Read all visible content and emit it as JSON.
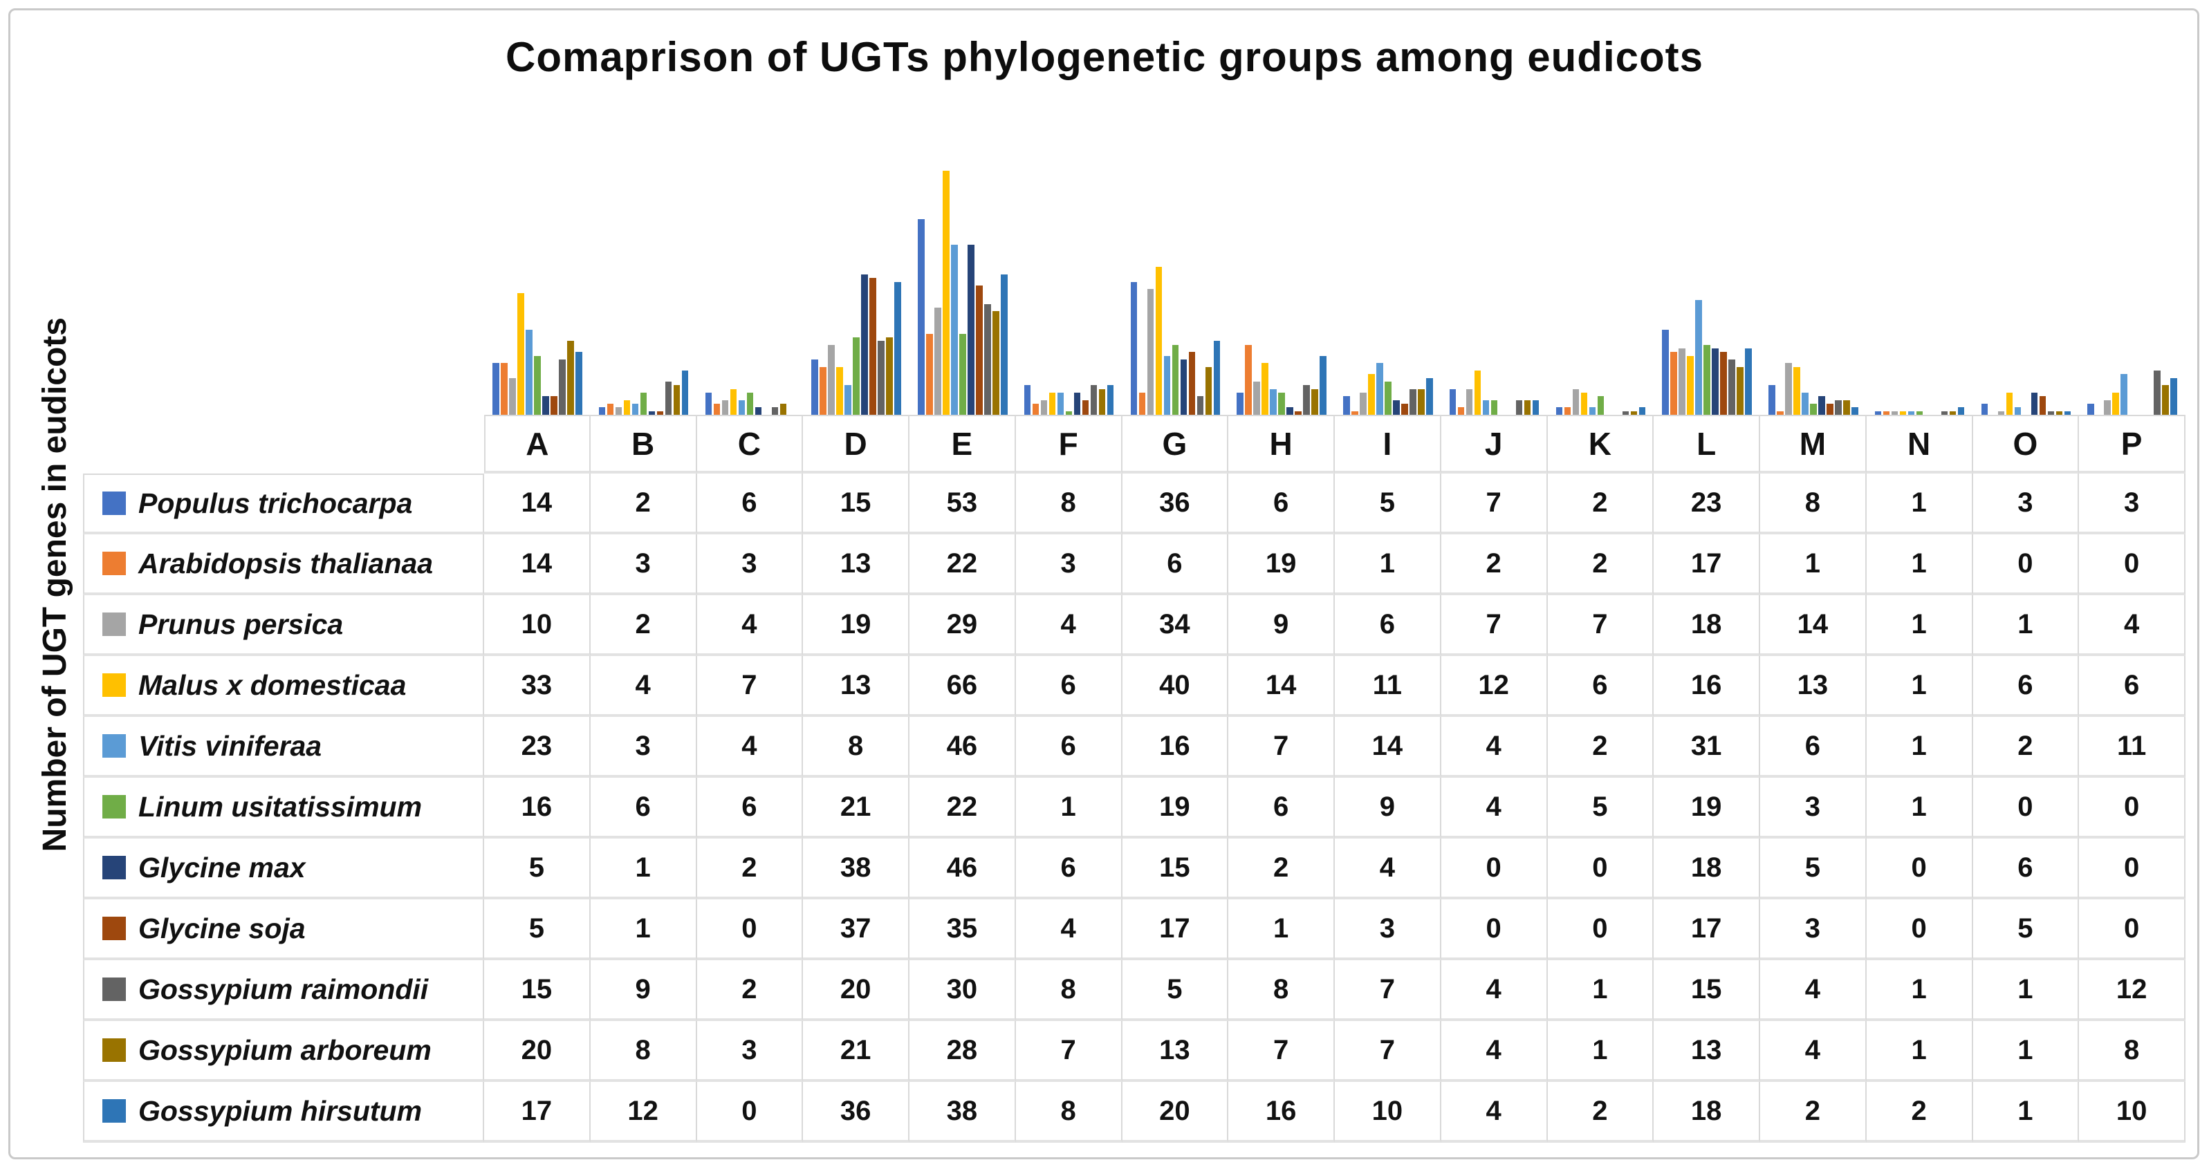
{
  "title": "Comaprison of UGTs phylogenetic groups among eudicots",
  "y_axis_label": "Number of UGT genes in eudicots",
  "chart_data": {
    "type": "bar",
    "title": "Comaprison of UGTs phylogenetic groups among eudicots",
    "xlabel": "",
    "ylabel": "Number of UGT genes in eudicots",
    "ylim": [
      0,
      70
    ],
    "grid": false,
    "legend_position": "table-rows-left",
    "categories": [
      "A",
      "B",
      "C",
      "D",
      "E",
      "F",
      "G",
      "H",
      "I",
      "J",
      "K",
      "L",
      "M",
      "N",
      "O",
      "P"
    ],
    "series": [
      {
        "name": "Populus trichocarpa",
        "color": "#4472C4",
        "values": [
          14,
          2,
          6,
          15,
          53,
          8,
          36,
          6,
          5,
          7,
          2,
          23,
          8,
          1,
          3,
          3
        ]
      },
      {
        "name": "Arabidopsis thalianaa",
        "color": "#ED7D31",
        "values": [
          14,
          3,
          3,
          13,
          22,
          3,
          6,
          19,
          1,
          2,
          2,
          17,
          1,
          1,
          0,
          0
        ]
      },
      {
        "name": "Prunus persica",
        "color": "#A5A5A5",
        "values": [
          10,
          2,
          4,
          19,
          29,
          4,
          34,
          9,
          6,
          7,
          7,
          18,
          14,
          1,
          1,
          4
        ]
      },
      {
        "name": "Malus x domesticaa",
        "color": "#FFC000",
        "values": [
          33,
          4,
          7,
          13,
          66,
          6,
          40,
          14,
          11,
          12,
          6,
          16,
          13,
          1,
          6,
          6
        ]
      },
      {
        "name": "Vitis viniferaa",
        "color": "#5B9BD5",
        "values": [
          23,
          3,
          4,
          8,
          46,
          6,
          16,
          7,
          14,
          4,
          2,
          31,
          6,
          1,
          2,
          11
        ]
      },
      {
        "name": "Linum usitatissimum",
        "color": "#70AD47",
        "values": [
          16,
          6,
          6,
          21,
          22,
          1,
          19,
          6,
          9,
          4,
          5,
          19,
          3,
          1,
          0,
          0
        ]
      },
      {
        "name": "Glycine max",
        "color": "#264478",
        "values": [
          5,
          1,
          2,
          38,
          46,
          6,
          15,
          2,
          4,
          0,
          0,
          18,
          5,
          0,
          6,
          0
        ]
      },
      {
        "name": "Glycine soja",
        "color": "#9E480E",
        "values": [
          5,
          1,
          0,
          37,
          35,
          4,
          17,
          1,
          3,
          0,
          0,
          17,
          3,
          0,
          5,
          0
        ]
      },
      {
        "name": "Gossypium raimondii",
        "color": "#636363",
        "values": [
          15,
          9,
          2,
          20,
          30,
          8,
          5,
          8,
          7,
          4,
          1,
          15,
          4,
          1,
          1,
          12
        ]
      },
      {
        "name": "Gossypium arboreum",
        "color": "#997300",
        "values": [
          20,
          8,
          3,
          21,
          28,
          7,
          13,
          7,
          7,
          4,
          1,
          13,
          4,
          1,
          1,
          8
        ]
      },
      {
        "name": "Gossypium hirsutum",
        "color": "#2E75B6",
        "values": [
          17,
          12,
          0,
          36,
          38,
          8,
          20,
          16,
          10,
          4,
          2,
          18,
          2,
          2,
          1,
          10
        ]
      }
    ]
  }
}
